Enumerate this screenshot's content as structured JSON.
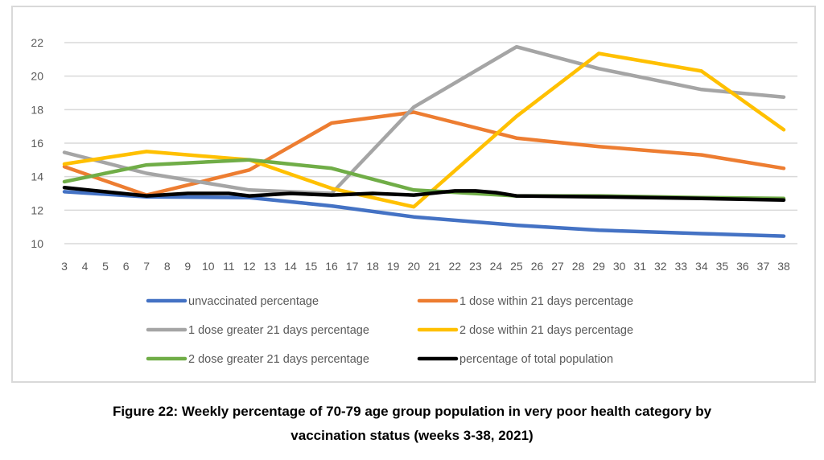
{
  "chart_data": {
    "type": "line",
    "title": "",
    "xlabel": "",
    "ylabel": "",
    "ylim": [
      10,
      22
    ],
    "yticks": [
      10,
      12,
      14,
      16,
      18,
      20,
      22
    ],
    "grid": true,
    "legend_position": "bottom",
    "x": [
      3,
      4,
      5,
      6,
      7,
      8,
      9,
      10,
      11,
      12,
      13,
      14,
      15,
      16,
      17,
      18,
      19,
      20,
      21,
      22,
      23,
      24,
      25,
      26,
      27,
      28,
      29,
      30,
      31,
      32,
      33,
      34,
      35,
      36,
      37,
      38
    ],
    "x_tick_labels": [
      "3",
      "4",
      "5",
      "6",
      "7",
      "8",
      "9",
      "10",
      "11",
      "12",
      "13",
      "14",
      "15",
      "16",
      "17",
      "18",
      "19",
      "20",
      "21",
      "22",
      "23",
      "24",
      "25",
      "26",
      "27",
      "28",
      "29",
      "30",
      "31",
      "32",
      "33",
      "34",
      "35",
      "36",
      "37",
      "38"
    ],
    "series": [
      {
        "name": "unvaccinated percentage",
        "color": "#4472C4",
        "points": [
          [
            3,
            13.1
          ],
          [
            7,
            12.8
          ],
          [
            12,
            12.75
          ],
          [
            16,
            12.25
          ],
          [
            20,
            11.6
          ],
          [
            25,
            11.1
          ],
          [
            29,
            10.8
          ],
          [
            34,
            10.6
          ],
          [
            38,
            10.45
          ]
        ]
      },
      {
        "name": "1 dose within 21 days percentage",
        "color": "#ED7D31",
        "points": [
          [
            3,
            14.6
          ],
          [
            7,
            12.9
          ],
          [
            12,
            14.4
          ],
          [
            16,
            17.2
          ],
          [
            20,
            17.85
          ],
          [
            25,
            16.3
          ],
          [
            29,
            15.8
          ],
          [
            34,
            15.3
          ],
          [
            38,
            14.5
          ]
        ]
      },
      {
        "name": "1 dose greater 21 days percentage",
        "color": "#A5A5A5",
        "points": [
          [
            3,
            15.45
          ],
          [
            7,
            14.2
          ],
          [
            12,
            13.2
          ],
          [
            16,
            13.0
          ],
          [
            20,
            18.15
          ],
          [
            25,
            21.75
          ],
          [
            29,
            20.45
          ],
          [
            34,
            19.2
          ],
          [
            38,
            18.75
          ]
        ]
      },
      {
        "name": "2 dose within 21 days percentage",
        "color": "#FFC000",
        "points": [
          [
            3,
            14.75
          ],
          [
            7,
            15.5
          ],
          [
            12,
            15.0
          ],
          [
            16,
            13.3
          ],
          [
            20,
            12.2
          ],
          [
            25,
            17.6
          ],
          [
            29,
            21.35
          ],
          [
            34,
            20.3
          ],
          [
            38,
            16.8
          ]
        ]
      },
      {
        "name": "2 dose greater  21 days percentage",
        "color": "#70AD47",
        "points": [
          [
            3,
            13.7
          ],
          [
            7,
            14.7
          ],
          [
            12,
            15.0
          ],
          [
            16,
            14.5
          ],
          [
            20,
            13.2
          ],
          [
            25,
            12.85
          ],
          [
            29,
            12.85
          ],
          [
            34,
            12.75
          ],
          [
            38,
            12.7
          ]
        ]
      },
      {
        "name": "percentage of total population",
        "color": "#000000",
        "points": [
          [
            3,
            13.35
          ],
          [
            7,
            12.85
          ],
          [
            9,
            13.0
          ],
          [
            11,
            13.0
          ],
          [
            12,
            12.85
          ],
          [
            14,
            13.0
          ],
          [
            16,
            12.9
          ],
          [
            18,
            13.0
          ],
          [
            20,
            12.9
          ],
          [
            22,
            13.15
          ],
          [
            23,
            13.15
          ],
          [
            24,
            13.05
          ],
          [
            25,
            12.85
          ],
          [
            29,
            12.8
          ],
          [
            34,
            12.7
          ],
          [
            38,
            12.6
          ]
        ]
      }
    ],
    "caption_lines": [
      "Figure 22: Weekly percentage of 70-79 age group population in very poor health category by",
      "vaccination status (weeks 3-38, 2021)"
    ]
  }
}
